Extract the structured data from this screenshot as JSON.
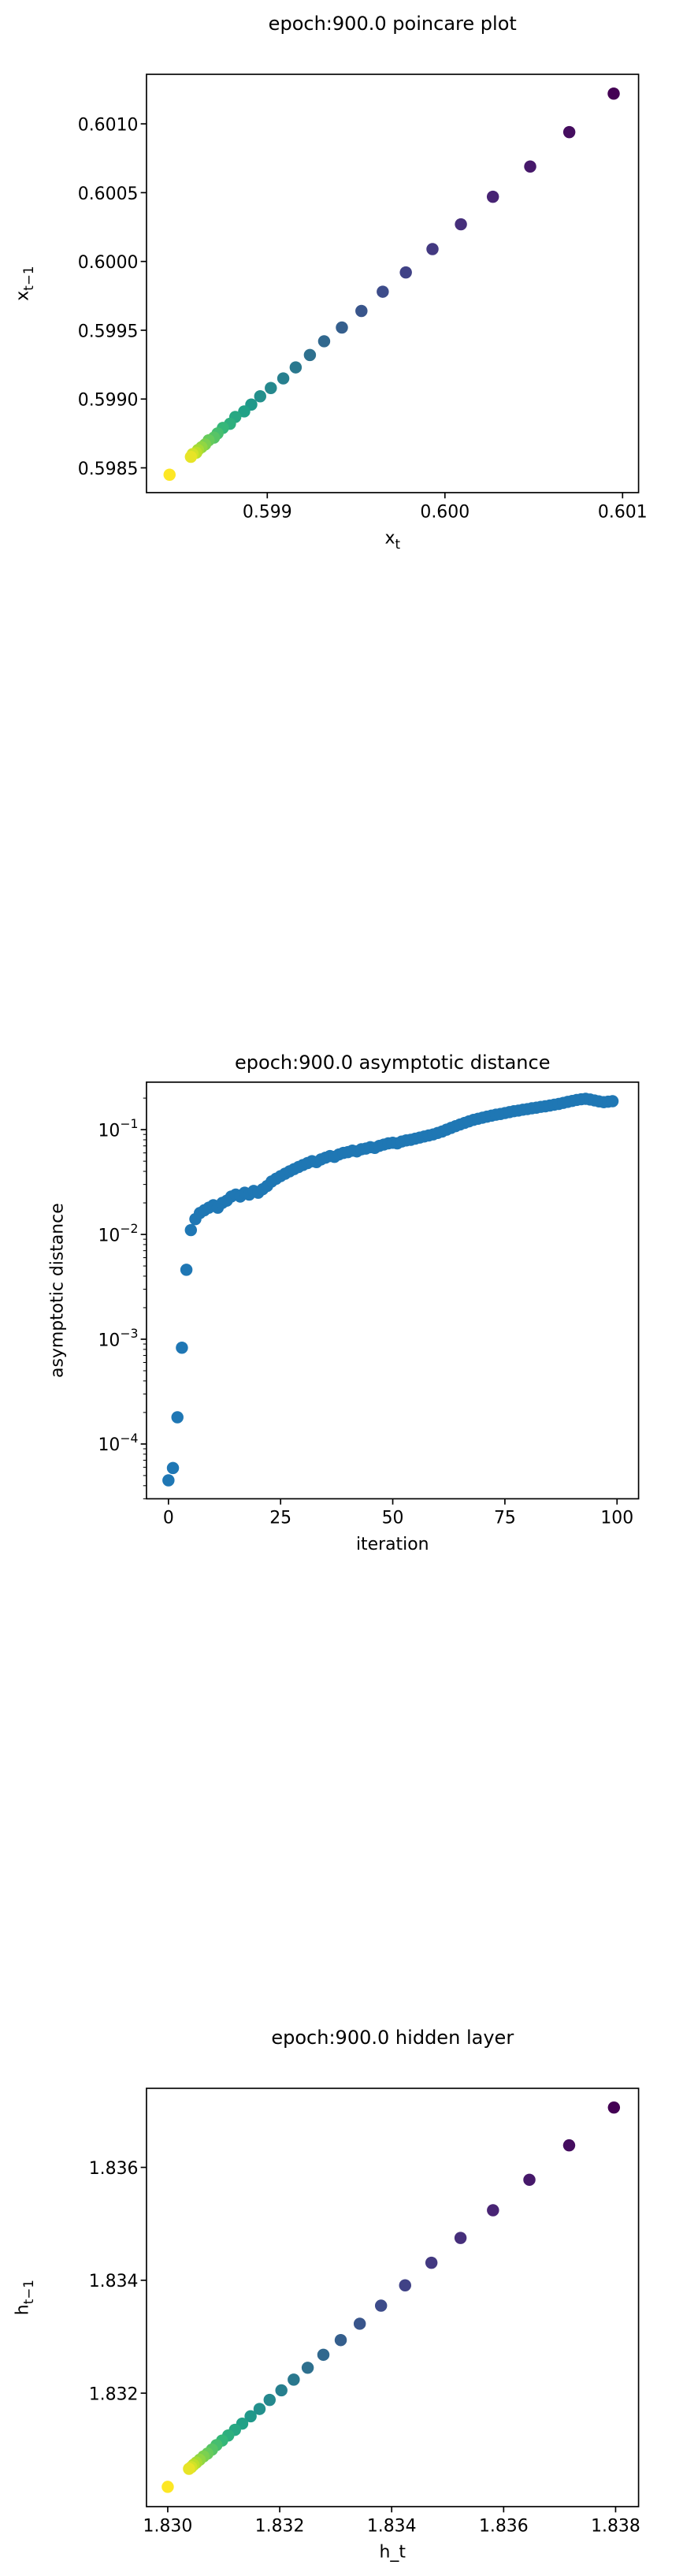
{
  "chart_data": [
    {
      "type": "scatter",
      "title": "epoch:900.0 poincare plot",
      "xlabel": {
        "text": "x",
        "sub": "t"
      },
      "ylabel": {
        "text": "x",
        "sub": "t−1"
      },
      "colormap": "viridis",
      "x": [
        0.60095,
        0.6007,
        0.60048,
        0.60027,
        0.60009,
        0.59993,
        0.59978,
        0.59965,
        0.59953,
        0.59942,
        0.59932,
        0.59924,
        0.59916,
        0.59909,
        0.59902,
        0.59896,
        0.59891,
        0.59887,
        0.59882,
        0.59879,
        0.59875,
        0.59872,
        0.5987,
        0.59867,
        0.59865,
        0.59863,
        0.59861,
        0.5986,
        0.59858,
        0.59857,
        0.59845
      ],
      "y": [
        0.60122,
        0.60094,
        0.60069,
        0.60047,
        0.60027,
        0.60009,
        0.59992,
        0.59978,
        0.59964,
        0.59952,
        0.59942,
        0.59932,
        0.59923,
        0.59915,
        0.59908,
        0.59902,
        0.59896,
        0.59891,
        0.59887,
        0.59882,
        0.59879,
        0.59875,
        0.59872,
        0.5987,
        0.59867,
        0.59865,
        0.59863,
        0.59861,
        0.5986,
        0.59858,
        0.59845
      ],
      "xlim": [
        0.59832,
        0.60109
      ],
      "ylim": [
        0.59832,
        0.60136
      ],
      "xticks": [
        0.599,
        {
          "value": 0.6,
          "label": "0.600"
        },
        0.601
      ],
      "yticks": [
        0.5985,
        {
          "value": 0.599,
          "label": "0.5990"
        },
        0.5995,
        {
          "value": 0.6,
          "label": "0.6000"
        },
        0.6005,
        {
          "value": 0.601,
          "label": "0.6010"
        }
      ]
    },
    {
      "type": "scatter",
      "title": "epoch:900.0 asymptotic distance",
      "xlabel": "iteration",
      "ylabel": "asymptotic distance",
      "color": "#1f77b4",
      "ylog": true,
      "x": [
        0,
        1,
        2,
        3,
        4,
        5,
        6,
        7,
        8,
        9,
        10,
        11,
        12,
        13,
        14,
        15,
        16,
        17,
        18,
        19,
        20,
        21,
        22,
        23,
        24,
        25,
        26,
        27,
        28,
        29,
        30,
        31,
        32,
        33,
        34,
        35,
        36,
        37,
        38,
        39,
        40,
        41,
        42,
        43,
        44,
        45,
        46,
        47,
        48,
        49,
        50,
        51,
        52,
        53,
        54,
        55,
        56,
        57,
        58,
        59,
        60,
        61,
        62,
        63,
        64,
        65,
        66,
        67,
        68,
        69,
        70,
        71,
        72,
        73,
        74,
        75,
        76,
        77,
        78,
        79,
        80,
        81,
        82,
        83,
        84,
        85,
        86,
        87,
        88,
        89,
        90,
        91,
        92,
        93,
        94,
        95,
        96,
        97,
        98,
        99
      ],
      "y": [
        4.5e-05,
        5.9e-05,
        0.00018,
        0.00083,
        0.0046,
        0.011,
        0.014,
        0.016,
        0.017,
        0.018,
        0.019,
        0.018,
        0.02,
        0.021,
        0.023,
        0.024,
        0.023,
        0.025,
        0.024,
        0.026,
        0.025,
        0.027,
        0.029,
        0.032,
        0.034,
        0.036,
        0.038,
        0.04,
        0.042,
        0.044,
        0.046,
        0.048,
        0.05,
        0.049,
        0.052,
        0.054,
        0.056,
        0.055,
        0.058,
        0.06,
        0.061,
        0.063,
        0.062,
        0.065,
        0.066,
        0.068,
        0.067,
        0.07,
        0.072,
        0.074,
        0.075,
        0.074,
        0.077,
        0.079,
        0.08,
        0.082,
        0.084,
        0.086,
        0.088,
        0.09,
        0.093,
        0.096,
        0.1,
        0.104,
        0.108,
        0.112,
        0.116,
        0.12,
        0.124,
        0.127,
        0.13,
        0.133,
        0.136,
        0.139,
        0.141,
        0.144,
        0.147,
        0.15,
        0.152,
        0.155,
        0.157,
        0.16,
        0.162,
        0.165,
        0.167,
        0.17,
        0.173,
        0.176,
        0.18,
        0.184,
        0.188,
        0.192,
        0.195,
        0.197,
        0.194,
        0.19,
        0.186,
        0.183,
        0.185,
        0.187
      ],
      "xlim": [
        -4.9,
        104.8
      ],
      "ylim": [
        3e-05,
        0.284
      ],
      "xticks": [
        0,
        25,
        50,
        75,
        100
      ],
      "yticks": [
        {
          "value": 0.0001,
          "label": "10",
          "exponent": "−4"
        },
        {
          "value": 0.001,
          "label": "10",
          "exponent": "−3"
        },
        {
          "value": 0.01,
          "label": "10",
          "exponent": "−2"
        },
        {
          "value": 0.1,
          "label": "10",
          "exponent": "−1"
        }
      ]
    },
    {
      "type": "scatter",
      "title": "epoch:900.0 hidden layer",
      "xlabel": "h_t",
      "ylabel": {
        "text": "h",
        "sub": "t−1"
      },
      "colormap": "viridis",
      "x": [
        1.83797,
        1.83717,
        1.83646,
        1.83581,
        1.83523,
        1.83471,
        1.83424,
        1.83381,
        1.83343,
        1.83309,
        1.83278,
        1.8325,
        1.83225,
        1.83203,
        1.83182,
        1.83164,
        1.83148,
        1.83133,
        1.8312,
        1.83108,
        1.83097,
        1.83087,
        1.83079,
        1.83071,
        1.83064,
        1.83057,
        1.83051,
        1.83046,
        1.83042,
        1.83038,
        1.83
      ],
      "y": [
        1.83706,
        1.83639,
        1.83578,
        1.83524,
        1.83475,
        1.83431,
        1.83391,
        1.83355,
        1.83323,
        1.83294,
        1.83268,
        1.83245,
        1.83224,
        1.83205,
        1.83188,
        1.83172,
        1.83159,
        1.83146,
        1.83135,
        1.83125,
        1.83116,
        1.83108,
        1.831,
        1.83093,
        1.83088,
        1.83082,
        1.83077,
        1.83073,
        1.83069,
        1.83066,
        1.83034
      ],
      "xlim": [
        1.82962,
        1.83841
      ],
      "ylim": [
        1.82999,
        1.8374
      ],
      "xticks": [
        {
          "value": 1.83,
          "label": "1.830"
        },
        1.832,
        1.834,
        1.836,
        1.838
      ],
      "yticks": [
        1.832,
        1.834,
        1.836
      ]
    }
  ]
}
